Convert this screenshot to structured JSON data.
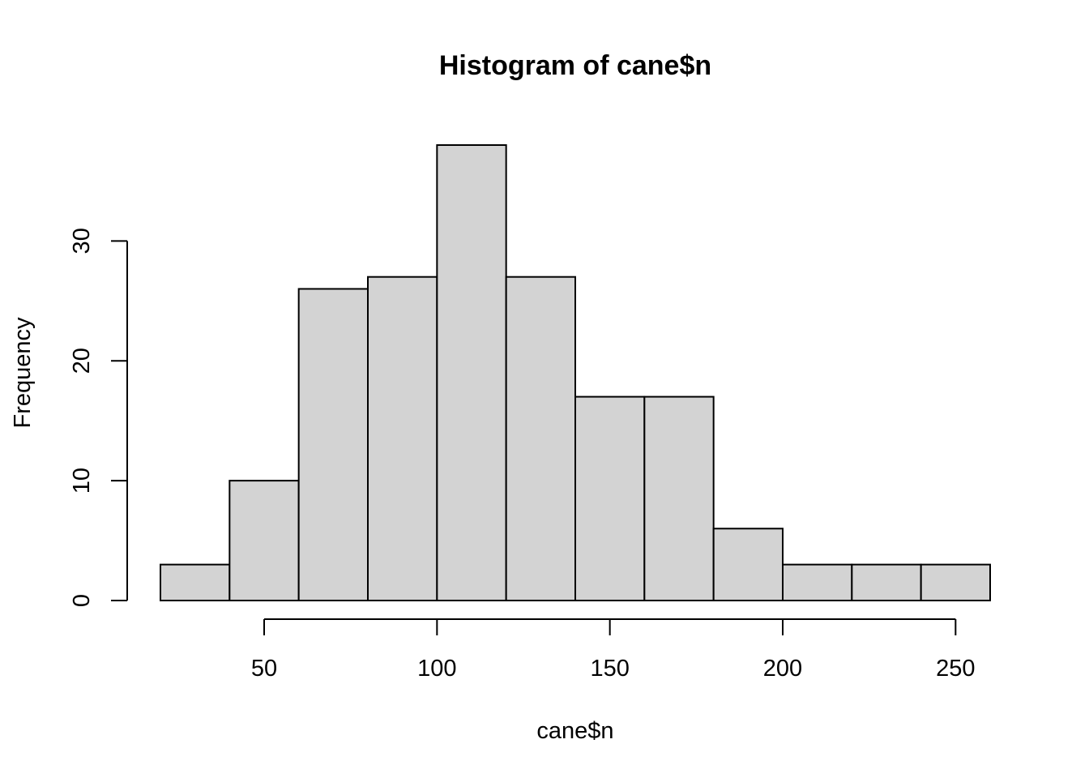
{
  "chart_data": {
    "type": "bar",
    "subtype": "histogram",
    "title": "Histogram of cane$n",
    "xlabel": "cane$n",
    "ylabel": "Frequency",
    "bins": [
      {
        "start": 20,
        "end": 40,
        "count": 3
      },
      {
        "start": 40,
        "end": 60,
        "count": 10
      },
      {
        "start": 60,
        "end": 80,
        "count": 26
      },
      {
        "start": 80,
        "end": 100,
        "count": 27
      },
      {
        "start": 100,
        "end": 120,
        "count": 38
      },
      {
        "start": 120,
        "end": 140,
        "count": 27
      },
      {
        "start": 140,
        "end": 160,
        "count": 17
      },
      {
        "start": 160,
        "end": 180,
        "count": 17
      },
      {
        "start": 180,
        "end": 200,
        "count": 6
      },
      {
        "start": 200,
        "end": 220,
        "count": 3
      },
      {
        "start": 220,
        "end": 240,
        "count": 3
      },
      {
        "start": 240,
        "end": 260,
        "count": 3
      }
    ],
    "xlim": [
      20,
      260
    ],
    "ylim": [
      0,
      38
    ],
    "x_ticks": [
      50,
      100,
      150,
      200,
      250
    ],
    "y_ticks": [
      0,
      10,
      20,
      30
    ],
    "bar_fill": "#d3d3d3",
    "bar_stroke": "#000000",
    "grid": false,
    "legend": "none"
  }
}
